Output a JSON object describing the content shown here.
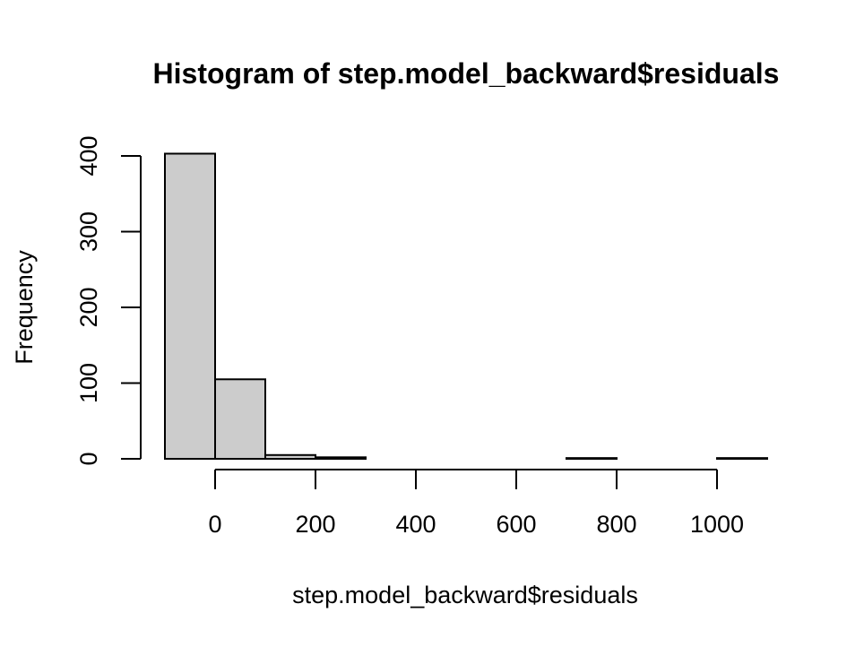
{
  "chart_data": {
    "type": "bar",
    "subtype": "histogram",
    "title": "Histogram of step.model_backward$residuals",
    "xlabel": "step.model_backward$residuals",
    "ylabel": "Frequency",
    "bin_edges": [
      -100,
      0,
      100,
      200,
      300,
      400,
      500,
      600,
      700,
      800,
      900,
      1000,
      1100
    ],
    "values": [
      403,
      105,
      5,
      2,
      0,
      0,
      0,
      0,
      1,
      0,
      0,
      1
    ],
    "xticks": [
      0,
      200,
      400,
      600,
      800,
      1000
    ],
    "yticks": [
      0,
      100,
      200,
      300,
      400
    ],
    "bar_color": "#cccccc",
    "grid": false,
    "legend": "none"
  }
}
